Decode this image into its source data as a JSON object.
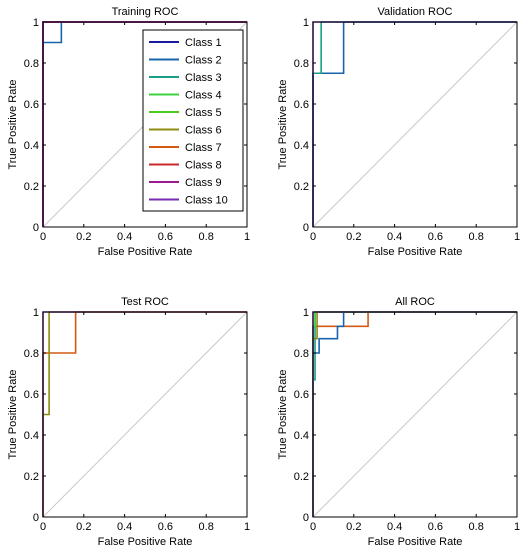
{
  "chart_data": [
    {
      "type": "line",
      "title": "Training ROC",
      "xlabel": "False Positive Rate",
      "ylabel": "True Positive Rate",
      "xlim": [
        0,
        1
      ],
      "ylim": [
        0,
        1
      ],
      "x_ticks": [
        "0",
        "0.2",
        "0.4",
        "0.6",
        "0.8",
        "1"
      ],
      "y_ticks": [
        "0",
        "0.2",
        "0.4",
        "0.6",
        "0.8",
        "1"
      ],
      "grid": false,
      "legend": "top-right",
      "series": [
        {
          "name": "Class 1",
          "color": "#1a1a9c",
          "points": [
            [
              0,
              0
            ],
            [
              0,
              1
            ],
            [
              1,
              1
            ]
          ]
        },
        {
          "name": "Class 2",
          "color": "#1864ab",
          "points": [
            [
              0,
              0
            ],
            [
              0,
              0.9
            ],
            [
              0.09,
              0.9
            ],
            [
              0.09,
              1
            ],
            [
              1,
              1
            ]
          ]
        },
        {
          "name": "Class 3",
          "color": "#1a9e86",
          "points": [
            [
              0,
              0
            ],
            [
              0,
              1
            ],
            [
              1,
              1
            ]
          ]
        },
        {
          "name": "Class 4",
          "color": "#3fd23f",
          "points": [
            [
              0,
              0
            ],
            [
              0,
              1
            ],
            [
              1,
              1
            ]
          ]
        },
        {
          "name": "Class 5",
          "color": "#4ccc1a",
          "points": [
            [
              0,
              0
            ],
            [
              0,
              1
            ],
            [
              1,
              1
            ]
          ]
        },
        {
          "name": "Class 6",
          "color": "#8c8c10",
          "points": [
            [
              0,
              0
            ],
            [
              0,
              1
            ],
            [
              1,
              1
            ]
          ]
        },
        {
          "name": "Class 7",
          "color": "#d45a14",
          "points": [
            [
              0,
              0
            ],
            [
              0,
              1
            ],
            [
              1,
              1
            ]
          ]
        },
        {
          "name": "Class 8",
          "color": "#c82a2a",
          "points": [
            [
              0,
              0
            ],
            [
              0,
              1
            ],
            [
              1,
              1
            ]
          ]
        },
        {
          "name": "Class 9",
          "color": "#9b1a8c",
          "points": [
            [
              0,
              0
            ],
            [
              0,
              1
            ],
            [
              1,
              1
            ]
          ]
        },
        {
          "name": "Class 10",
          "color": "#7a2ab4",
          "points": [
            [
              0,
              0
            ],
            [
              0,
              1
            ],
            [
              1,
              1
            ]
          ]
        }
      ]
    },
    {
      "type": "line",
      "title": "Validation ROC",
      "xlabel": "False Positive Rate",
      "ylabel": "True Positive Rate",
      "xlim": [
        0,
        1
      ],
      "ylim": [
        0,
        1
      ],
      "x_ticks": [
        "0",
        "0.2",
        "0.4",
        "0.6",
        "0.8",
        "1"
      ],
      "y_ticks": [
        "0",
        "0.2",
        "0.4",
        "0.6",
        "0.8",
        "1"
      ],
      "grid": false,
      "series": [
        {
          "name": "Class 2",
          "color": "#1864ab",
          "points": [
            [
              0,
              0
            ],
            [
              0,
              0.75
            ],
            [
              0.15,
              0.75
            ],
            [
              0.15,
              1
            ],
            [
              1,
              1
            ]
          ]
        },
        {
          "name": "Class 3",
          "color": "#1a9e86",
          "points": [
            [
              0,
              0
            ],
            [
              0,
              0.75
            ],
            [
              0.04,
              0.75
            ],
            [
              0.04,
              1
            ],
            [
              1,
              1
            ]
          ]
        },
        {
          "name": "Class 10",
          "color": "#7a2ab4",
          "points": [
            [
              0,
              0
            ],
            [
              0,
              1
            ],
            [
              1,
              1
            ]
          ]
        }
      ]
    },
    {
      "type": "line",
      "title": "Test ROC",
      "xlabel": "False Positive Rate",
      "ylabel": "True Positive Rate",
      "xlim": [
        0,
        1
      ],
      "ylim": [
        0,
        1
      ],
      "x_ticks": [
        "0",
        "0.2",
        "0.4",
        "0.6",
        "0.8",
        "1"
      ],
      "y_ticks": [
        "0",
        "0.2",
        "0.4",
        "0.6",
        "0.8",
        "1"
      ],
      "grid": false,
      "series": [
        {
          "name": "Class 7",
          "color": "#d45a14",
          "points": [
            [
              0,
              0
            ],
            [
              0,
              0.8
            ],
            [
              0.16,
              0.8
            ],
            [
              0.16,
              1
            ],
            [
              1,
              1
            ]
          ]
        },
        {
          "name": "Class 6",
          "color": "#8c8c10",
          "points": [
            [
              0,
              0
            ],
            [
              0,
              0.5
            ],
            [
              0.03,
              0.5
            ],
            [
              0.03,
              1
            ],
            [
              1,
              1
            ]
          ]
        },
        {
          "name": "Class 10",
          "color": "#7a2ab4",
          "points": [
            [
              0,
              0
            ],
            [
              0,
              1
            ],
            [
              1,
              1
            ]
          ]
        }
      ]
    },
    {
      "type": "line",
      "title": "All ROC",
      "xlabel": "False Positive Rate",
      "ylabel": "True Positive Rate",
      "xlim": [
        0,
        1
      ],
      "ylim": [
        0,
        1
      ],
      "x_ticks": [
        "0",
        "0.2",
        "0.4",
        "0.6",
        "0.8",
        "1"
      ],
      "y_ticks": [
        "0",
        "0.2",
        "0.4",
        "0.6",
        "0.8",
        "1"
      ],
      "grid": false,
      "series": [
        {
          "name": "Class 7",
          "color": "#d45a14",
          "points": [
            [
              0,
              0
            ],
            [
              0,
              0.93
            ],
            [
              0.27,
              0.93
            ],
            [
              0.27,
              1
            ],
            [
              1,
              1
            ]
          ]
        },
        {
          "name": "Class 2",
          "color": "#1864ab",
          "points": [
            [
              0,
              0
            ],
            [
              0,
              0.8
            ],
            [
              0.03,
              0.8
            ],
            [
              0.03,
              0.87
            ],
            [
              0.12,
              0.87
            ],
            [
              0.12,
              0.93
            ],
            [
              0.15,
              0.93
            ],
            [
              0.15,
              1
            ],
            [
              1,
              1
            ]
          ]
        },
        {
          "name": "Class 3",
          "color": "#1a9e86",
          "points": [
            [
              0,
              0
            ],
            [
              0,
              0.67
            ],
            [
              0.01,
              0.67
            ],
            [
              0.01,
              1
            ],
            [
              1,
              1
            ]
          ]
        },
        {
          "name": "Class 6",
          "color": "#8c8c10",
          "points": [
            [
              0,
              0
            ],
            [
              0,
              0.87
            ],
            [
              0.02,
              0.87
            ],
            [
              0.02,
              1
            ],
            [
              1,
              1
            ]
          ]
        },
        {
          "name": "Class 4",
          "color": "#3fd23f",
          "points": [
            [
              0,
              0
            ],
            [
              0,
              0.93
            ],
            [
              0.01,
              0.93
            ],
            [
              0.01,
              1
            ],
            [
              1,
              1
            ]
          ]
        },
        {
          "name": "Class 10",
          "color": "#7a2ab4",
          "points": [
            [
              0,
              0
            ],
            [
              0,
              1
            ],
            [
              1,
              1
            ]
          ]
        }
      ]
    }
  ]
}
